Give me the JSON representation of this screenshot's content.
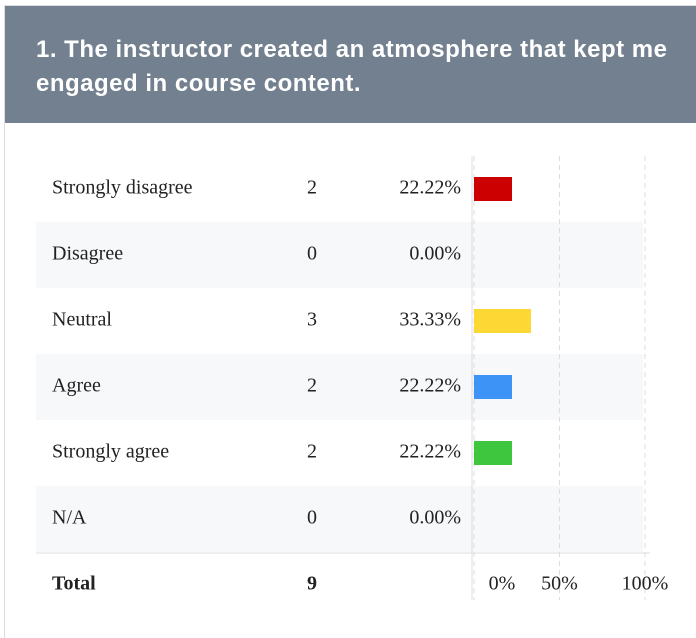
{
  "chart_data": {
    "type": "bar",
    "orientation": "horizontal",
    "title": "1. The instructor created an atmosphere that kept me engaged in course content.",
    "categories": [
      "Strongly disagree",
      "Disagree",
      "Neutral",
      "Agree",
      "Strongly agree",
      "N/A"
    ],
    "counts": [
      2,
      0,
      3,
      2,
      2,
      0
    ],
    "values": [
      22.22,
      0,
      33.33,
      22.22,
      22.22,
      0
    ],
    "value_labels": [
      "22.22%",
      "0.00%",
      "33.33%",
      "22.22%",
      "22.22%",
      "0.00%"
    ],
    "colors": [
      "#cc0000",
      null,
      "#fdd835",
      "#3d94f6",
      "#3ec63e",
      null
    ],
    "total_label": "Total",
    "total": 9,
    "xlim": [
      0,
      100
    ],
    "xticks": [
      {
        "value": 0,
        "label": "0%"
      },
      {
        "value": 50,
        "label": "50%"
      },
      {
        "value": 100,
        "label": "100%"
      }
    ],
    "grid": true
  }
}
